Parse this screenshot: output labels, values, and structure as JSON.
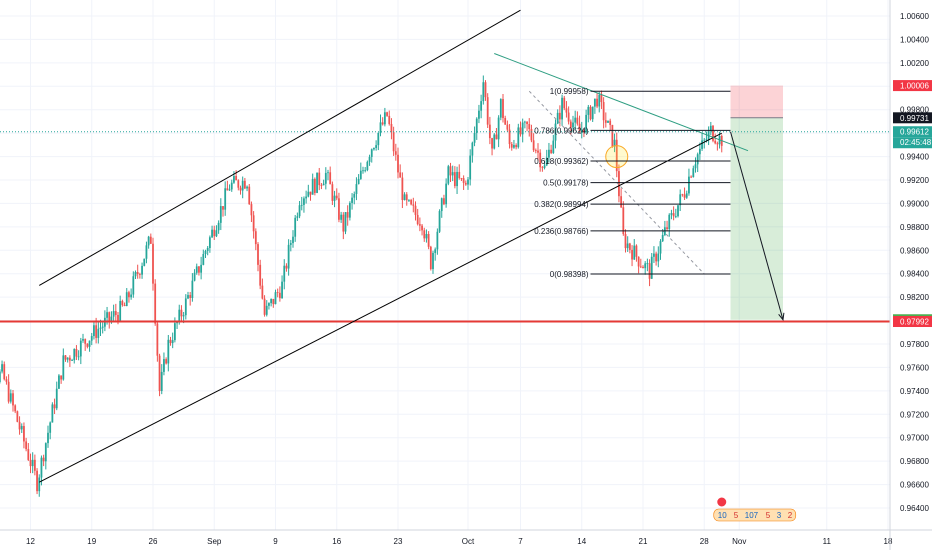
{
  "chart_data": {
    "type": "candlestick",
    "title": "",
    "xlabel": "",
    "ylabel": "",
    "ylim": [
      0.963,
      1.007
    ],
    "x_ticks": [
      {
        "label": "12",
        "date": "2019-08-12"
      },
      {
        "label": "19",
        "date": "2019-08-19"
      },
      {
        "label": "26",
        "date": "2019-08-26"
      },
      {
        "label": "Sep",
        "date": "2019-09-02"
      },
      {
        "label": "9",
        "date": "2019-09-09"
      },
      {
        "label": "16",
        "date": "2019-09-16"
      },
      {
        "label": "23",
        "date": "2019-09-23"
      },
      {
        "label": "Oct",
        "date": "2019-10-01"
      },
      {
        "label": "7",
        "date": "2019-10-07"
      },
      {
        "label": "14",
        "date": "2019-10-14"
      },
      {
        "label": "21",
        "date": "2019-10-21"
      },
      {
        "label": "28",
        "date": "2019-10-28"
      },
      {
        "label": "Nov",
        "date": "2019-11-01"
      },
      {
        "label": "11",
        "date": "2019-11-11"
      },
      {
        "label": "18",
        "date": "2019-11-18"
      }
    ],
    "y_ticks": [
      "1.00600",
      "1.00400",
      "1.00200",
      "1.00000",
      "0.99800",
      "0.99600",
      "0.99400",
      "0.99200",
      "0.99000",
      "0.98800",
      "0.98600",
      "0.98400",
      "0.98200",
      "0.98000",
      "0.97800",
      "0.97600",
      "0.97400",
      "0.97200",
      "0.97000",
      "0.96800",
      "0.96600",
      "0.96400"
    ],
    "price_anchors": [
      {
        "date": "2019-08-06",
        "price": 0.974
      },
      {
        "date": "2019-08-09",
        "price": 0.9755
      },
      {
        "date": "2019-08-13",
        "price": 0.9662
      },
      {
        "date": "2019-08-16",
        "price": 0.9765
      },
      {
        "date": "2019-08-20",
        "price": 0.9793
      },
      {
        "date": "2019-08-23",
        "price": 0.9812
      },
      {
        "date": "2019-08-26",
        "price": 0.987
      },
      {
        "date": "2019-08-27",
        "price": 0.974
      },
      {
        "date": "2019-08-28",
        "price": 0.978
      },
      {
        "date": "2019-08-30",
        "price": 0.9815
      },
      {
        "date": "2019-09-04",
        "price": 0.9915
      },
      {
        "date": "2019-09-06",
        "price": 0.992
      },
      {
        "date": "2019-09-08",
        "price": 0.9805
      },
      {
        "date": "2019-09-10",
        "price": 0.983
      },
      {
        "date": "2019-09-12",
        "price": 0.9905
      },
      {
        "date": "2019-09-15",
        "price": 0.9925
      },
      {
        "date": "2019-09-17",
        "price": 0.988
      },
      {
        "date": "2019-09-20",
        "price": 0.9945
      },
      {
        "date": "2019-09-22",
        "price": 0.9975
      },
      {
        "date": "2019-09-24",
        "price": 0.99
      },
      {
        "date": "2019-09-26",
        "price": 0.9885
      },
      {
        "date": "2019-09-27",
        "price": 0.985
      },
      {
        "date": "2019-09-29",
        "price": 0.9925
      },
      {
        "date": "2019-10-01",
        "price": 0.9915
      },
      {
        "date": "2019-10-03",
        "price": 1.0005
      },
      {
        "date": "2019-10-04",
        "price": 0.994
      },
      {
        "date": "2019-10-05",
        "price": 0.9985
      },
      {
        "date": "2019-10-06",
        "price": 0.995
      },
      {
        "date": "2019-10-08",
        "price": 0.9965
      },
      {
        "date": "2019-10-10",
        "price": 0.993
      },
      {
        "date": "2019-10-12",
        "price": 0.9985
      },
      {
        "date": "2019-10-14",
        "price": 0.996
      },
      {
        "date": "2019-10-16",
        "price": 0.999
      },
      {
        "date": "2019-10-18",
        "price": 0.995
      },
      {
        "date": "2019-10-19",
        "price": 0.987
      },
      {
        "date": "2019-10-21",
        "price": 0.985
      },
      {
        "date": "2019-10-22",
        "price": 0.9842
      },
      {
        "date": "2019-10-24",
        "price": 0.988
      },
      {
        "date": "2019-10-26",
        "price": 0.991
      },
      {
        "date": "2019-10-27",
        "price": 0.9935
      },
      {
        "date": "2019-10-29",
        "price": 0.9962
      },
      {
        "date": "2019-10-30",
        "price": 0.9955
      }
    ],
    "fibonacci": [
      {
        "label": "1(0.99958)",
        "price": 0.99958
      },
      {
        "label": "0.786(0.99624)",
        "price": 0.99624
      },
      {
        "label": "0.618(0.99362)",
        "price": 0.99362
      },
      {
        "label": "0.5(0.99178)",
        "price": 0.99178
      },
      {
        "label": "0.382(0.98994)",
        "price": 0.98994
      },
      {
        "label": "0.236(0.98766)",
        "price": 0.98766
      },
      {
        "label": "0(0.98398)",
        "price": 0.98398
      }
    ],
    "price_labels": [
      {
        "label": "1.00006",
        "price": 1.00006,
        "bg": "#f23645",
        "fg": "#ffffff"
      },
      {
        "label": "0.99731",
        "price": 0.99731,
        "bg": "#131722",
        "fg": "#ffffff"
      },
      {
        "label": "0.99612",
        "price": 0.99612,
        "bg": "#26a69a",
        "fg": "#ffffff",
        "sub": "02:45:48"
      },
      {
        "label": "0.98007",
        "price": 0.98007,
        "bg": "#4caf50",
        "fg": "#ffffff"
      },
      {
        "label": "0.97992",
        "price": 0.97992,
        "bg": "#f23645",
        "fg": "#ffffff"
      }
    ],
    "horizontal_levels": {
      "support": 0.97992,
      "current": 0.99612
    },
    "position": {
      "start": "2019-10-31",
      "end": "2019-11-06",
      "entry": 0.99731,
      "stop": 1.00006,
      "target": 0.98007
    },
    "channel_upper": [
      {
        "date": "2019-08-13",
        "price": 0.983
      },
      {
        "date": "2019-10-07",
        "price": 1.0065
      }
    ],
    "channel_lower": [
      {
        "date": "2019-08-13",
        "price": 0.9662
      },
      {
        "date": "2019-10-30",
        "price": 0.996
      }
    ],
    "downtrend_line": [
      {
        "date": "2019-10-04",
        "price": 1.0028
      },
      {
        "date": "2019-11-02",
        "price": 0.9945
      }
    ],
    "fib_diagonal": [
      {
        "date": "2019-10-08",
        "price": 0.99958
      },
      {
        "date": "2019-10-28",
        "price": 0.98398
      }
    ],
    "forecast_arrow": [
      {
        "date": "2019-10-31",
        "price": 0.99612
      },
      {
        "date": "2019-11-06",
        "price": 0.98007
      }
    ],
    "highlight_circle": {
      "date": "2019-10-18",
      "price": 0.994
    },
    "badge_text": [
      "10",
      "5",
      "107",
      "5",
      "3",
      "2"
    ]
  },
  "colors": {
    "up": "#26a69a",
    "down": "#ef5350",
    "support": "#e53935",
    "channel": "#000000",
    "trend": "#2e9e82",
    "fib": "#131722"
  }
}
